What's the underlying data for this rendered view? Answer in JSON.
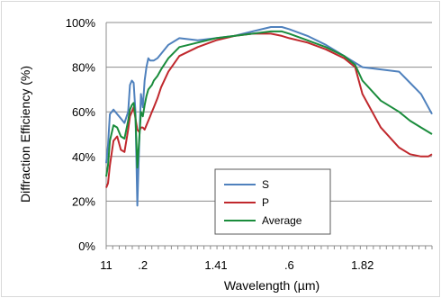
{
  "chart_data": {
    "type": "line",
    "xlabel": "Wavelength (µm)",
    "ylabel": "Diffraction Efficiency (%)",
    "x_tick_labels": [
      "11",
      ".2",
      "1.41",
      ".6",
      "1.82"
    ],
    "y_tick_labels": [
      "0%",
      "20%",
      "40%",
      "60%",
      "80%",
      "100%"
    ],
    "x_tick_positions": [
      1.1,
      1.2,
      1.4,
      1.6,
      1.8
    ],
    "xlim": [
      1.1,
      1.99
    ],
    "ylim": [
      0,
      100
    ],
    "grid": "horizontal",
    "legend_position": "bottom-center",
    "series": [
      {
        "name": "S",
        "color": "#4f81bd",
        "x": [
          1.1,
          1.105,
          1.11,
          1.12,
          1.13,
          1.14,
          1.15,
          1.16,
          1.165,
          1.17,
          1.175,
          1.18,
          1.185,
          1.19,
          1.195,
          1.2,
          1.205,
          1.21,
          1.215,
          1.22,
          1.225,
          1.23,
          1.24,
          1.25,
          1.27,
          1.3,
          1.35,
          1.4,
          1.45,
          1.5,
          1.55,
          1.58,
          1.6,
          1.65,
          1.7,
          1.75,
          1.8,
          1.85,
          1.9,
          1.93,
          1.96,
          1.98,
          1.99
        ],
        "y": [
          37,
          45,
          59,
          61,
          59,
          57,
          55,
          60,
          72,
          74,
          73,
          60,
          18,
          45,
          68,
          62,
          74,
          80,
          84,
          83,
          83,
          83,
          84,
          86,
          90,
          93,
          92,
          93,
          94,
          96,
          98,
          98,
          97,
          94,
          90,
          85,
          80,
          79,
          78,
          73,
          68,
          62,
          59
        ]
      },
      {
        "name": "P",
        "color": "#c0282d",
        "x": [
          1.1,
          1.105,
          1.11,
          1.12,
          1.13,
          1.14,
          1.15,
          1.16,
          1.165,
          1.17,
          1.175,
          1.18,
          1.185,
          1.19,
          1.195,
          1.2,
          1.205,
          1.21,
          1.215,
          1.22,
          1.225,
          1.23,
          1.24,
          1.25,
          1.27,
          1.3,
          1.35,
          1.4,
          1.45,
          1.5,
          1.55,
          1.58,
          1.6,
          1.65,
          1.7,
          1.75,
          1.78,
          1.8,
          1.85,
          1.9,
          1.93,
          1.96,
          1.98,
          1.99
        ],
        "y": [
          26,
          28,
          36,
          47,
          49,
          43,
          42,
          52,
          58,
          60,
          62,
          57,
          52,
          51,
          53,
          53,
          52,
          54,
          56,
          58,
          60,
          62,
          66,
          71,
          78,
          85,
          89,
          92,
          94,
          95,
          95,
          94,
          93,
          91,
          88,
          84,
          80,
          68,
          53,
          44,
          41,
          40,
          40,
          41
        ]
      },
      {
        "name": "Average",
        "color": "#1a8c3c",
        "x": [
          1.1,
          1.105,
          1.11,
          1.12,
          1.13,
          1.14,
          1.15,
          1.16,
          1.165,
          1.17,
          1.175,
          1.18,
          1.185,
          1.19,
          1.195,
          1.2,
          1.205,
          1.21,
          1.215,
          1.22,
          1.225,
          1.23,
          1.24,
          1.25,
          1.27,
          1.3,
          1.35,
          1.4,
          1.45,
          1.5,
          1.55,
          1.58,
          1.6,
          1.65,
          1.7,
          1.75,
          1.78,
          1.8,
          1.85,
          1.9,
          1.93,
          1.96,
          1.98,
          1.99
        ],
        "y": [
          31,
          36,
          47,
          54,
          53,
          49,
          48,
          56,
          61,
          63,
          64,
          58,
          35,
          47,
          60,
          58,
          63,
          67,
          70,
          71,
          72,
          74,
          76,
          79,
          84,
          89,
          91,
          93,
          94,
          95,
          96,
          96,
          95,
          92,
          89,
          85,
          81,
          74,
          65,
          60,
          56,
          53,
          51,
          50
        ]
      }
    ]
  }
}
